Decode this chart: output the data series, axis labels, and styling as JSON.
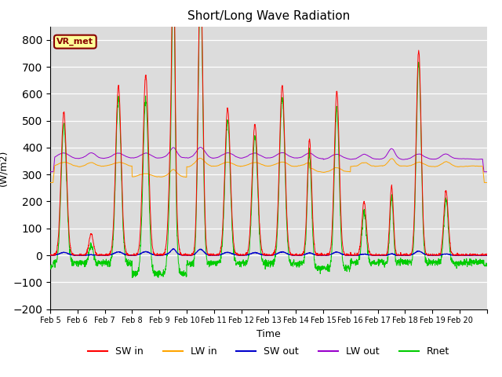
{
  "title": "Short/Long Wave Radiation",
  "xlabel": "Time",
  "ylabel": "(W/m2)",
  "ylim": [
    -200,
    850
  ],
  "yticks": [
    -200,
    -100,
    0,
    100,
    200,
    300,
    400,
    500,
    600,
    700,
    800
  ],
  "x_labels": [
    "Feb 5",
    "Feb 6",
    "Feb 7",
    "Feb 8",
    "Feb 9",
    "Feb 10",
    "Feb 11",
    "Feb 12",
    "Feb 13",
    "Feb 14",
    "Feb 15",
    "Feb 16",
    "Feb 17",
    "Feb 18",
    "Feb 19",
    "Feb 20"
  ],
  "annotation": "VR_met",
  "colors": {
    "SW_in": "#FF0000",
    "LW_in": "#FFA500",
    "SW_out": "#0000CC",
    "LW_out": "#9900CC",
    "Rnet": "#00CC00"
  },
  "background_color": "#DCDCDC",
  "n_days": 16,
  "pts_per_day": 144
}
